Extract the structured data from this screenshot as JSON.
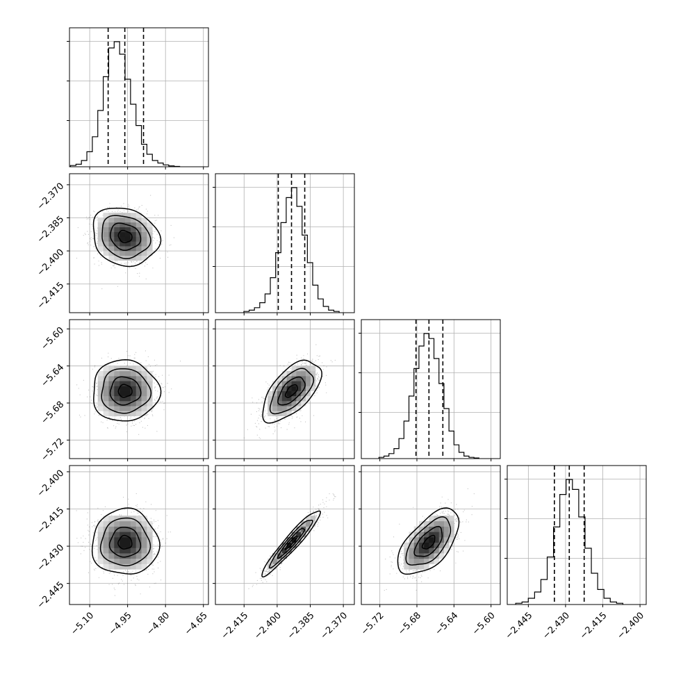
{
  "chart_data": {
    "type": "corner",
    "grid": true,
    "quantile_lines": "dashed",
    "parameters": [
      {
        "range": [
          -5.18,
          -4.63
        ],
        "ticks": [
          -5.1,
          -4.95,
          -4.8,
          -4.65
        ],
        "tick_labels": [
          "−5.10",
          "−4.95",
          "−4.80",
          "−4.65"
        ],
        "hist_counts": [
          1,
          2,
          5,
          12,
          24,
          45,
          72,
          95,
          100,
          90,
          70,
          50,
          33,
          18,
          10,
          5,
          3,
          1.5,
          0.7,
          0.3
        ],
        "quantiles": [
          -5.027,
          -4.961,
          -4.887
        ],
        "mean": -4.96,
        "sd": 0.06
      },
      {
        "range": [
          -2.428,
          -2.365
        ],
        "ticks": [
          -2.37,
          -2.385,
          -2.4,
          -2.415
        ],
        "tick_labels": [
          "−2.370",
          "−2.385",
          "−2.400",
          "−2.415"
        ],
        "x_ticks": [
          -2.415,
          -2.4,
          -2.385,
          -2.37
        ],
        "x_tick_labels": [
          "−2.415",
          "−2.400",
          "−2.385",
          "−2.370"
        ],
        "hist_counts": [
          1,
          2,
          4,
          8,
          15,
          28,
          48,
          72,
          92,
          100,
          85,
          62,
          40,
          22,
          11,
          5,
          2,
          1
        ],
        "quantiles": [
          -2.3995,
          -2.3935,
          -2.3875
        ],
        "mean": -2.3935,
        "sd": 0.006
      },
      {
        "range": [
          -5.74,
          -5.59
        ],
        "ticks": [
          -5.6,
          -5.64,
          -5.68,
          -5.72
        ],
        "tick_labels": [
          "−5.60",
          "−5.64",
          "−5.68",
          "−5.72"
        ],
        "x_ticks": [
          -5.72,
          -5.68,
          -5.64,
          -5.6
        ],
        "x_tick_labels": [
          "−5.72",
          "−5.68",
          "−5.64",
          "−5.60"
        ],
        "hist_counts": [
          1,
          2,
          4,
          8,
          16,
          30,
          50,
          72,
          90,
          100,
          96,
          80,
          60,
          40,
          22,
          11,
          5,
          2,
          1,
          0.5
        ],
        "quantiles": [
          -5.681,
          -5.667,
          -5.652
        ],
        "mean": -5.667,
        "sd": 0.015
      },
      {
        "range": [
          -2.4535,
          -2.3975
        ],
        "ticks": [
          -2.4,
          -2.415,
          -2.43,
          -2.445
        ],
        "tick_labels": [
          "−2.400",
          "−2.415",
          "−2.430",
          "−2.445"
        ],
        "x_ticks": [
          -2.445,
          -2.43,
          -2.415,
          -2.4
        ],
        "x_tick_labels": [
          "−2.445",
          "−2.430",
          "−2.415",
          "−2.400"
        ],
        "hist_counts": [
          1,
          2,
          5,
          10,
          20,
          38,
          62,
          88,
          100,
          92,
          70,
          45,
          25,
          12,
          5,
          2,
          1
        ],
        "quantiles": [
          -2.4345,
          -2.4285,
          -2.4225
        ],
        "mean": -2.4285,
        "sd": 0.006
      }
    ],
    "correlations": [
      {
        "pair": [
          1,
          0
        ],
        "rho": -0.15
      },
      {
        "pair": [
          2,
          0
        ],
        "rho": 0.0
      },
      {
        "pair": [
          2,
          1
        ],
        "rho": 0.6
      },
      {
        "pair": [
          3,
          0
        ],
        "rho": 0.0
      },
      {
        "pair": [
          3,
          1
        ],
        "rho": 0.95
      },
      {
        "pair": [
          3,
          2
        ],
        "rho": 0.6
      }
    ]
  }
}
